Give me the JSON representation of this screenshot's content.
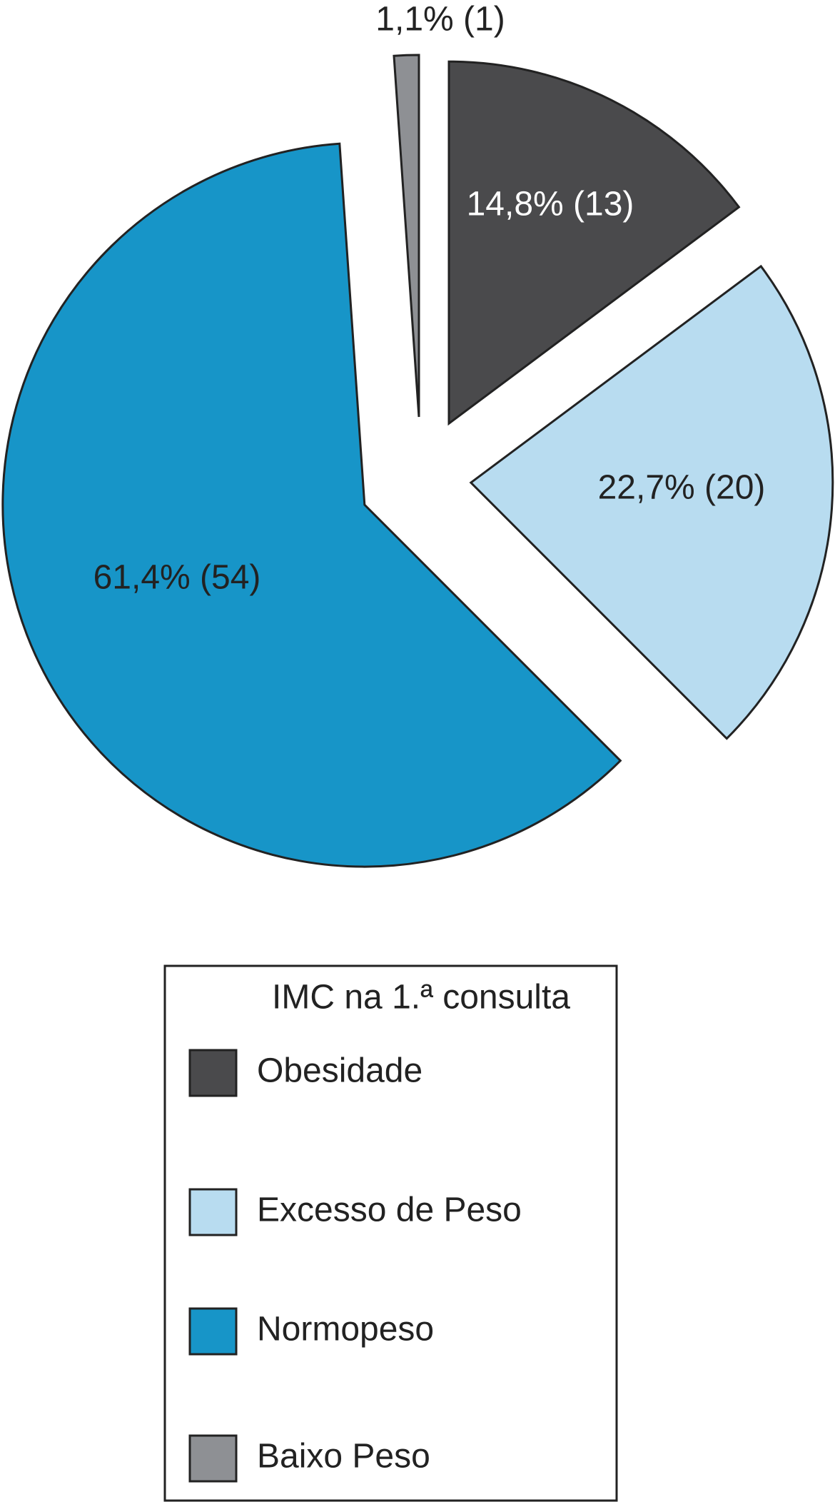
{
  "chart_data": {
    "type": "pie",
    "legend_title": "IMC na 1.ª consulta",
    "categories": [
      "Obesidade",
      "Excesso de Peso",
      "Normopeso",
      "Baixo Peso"
    ],
    "values": [
      14.8,
      22.7,
      61.4,
      1.1
    ],
    "value_labels": [
      "14,8% (13)",
      "22,7% (20)",
      "61,4% (54)",
      "1,1% (1)"
    ],
    "colors": [
      "#4a4a4c",
      "#b8dcf0",
      "#1795c8",
      "#8e9094"
    ],
    "legend": "bottom"
  }
}
